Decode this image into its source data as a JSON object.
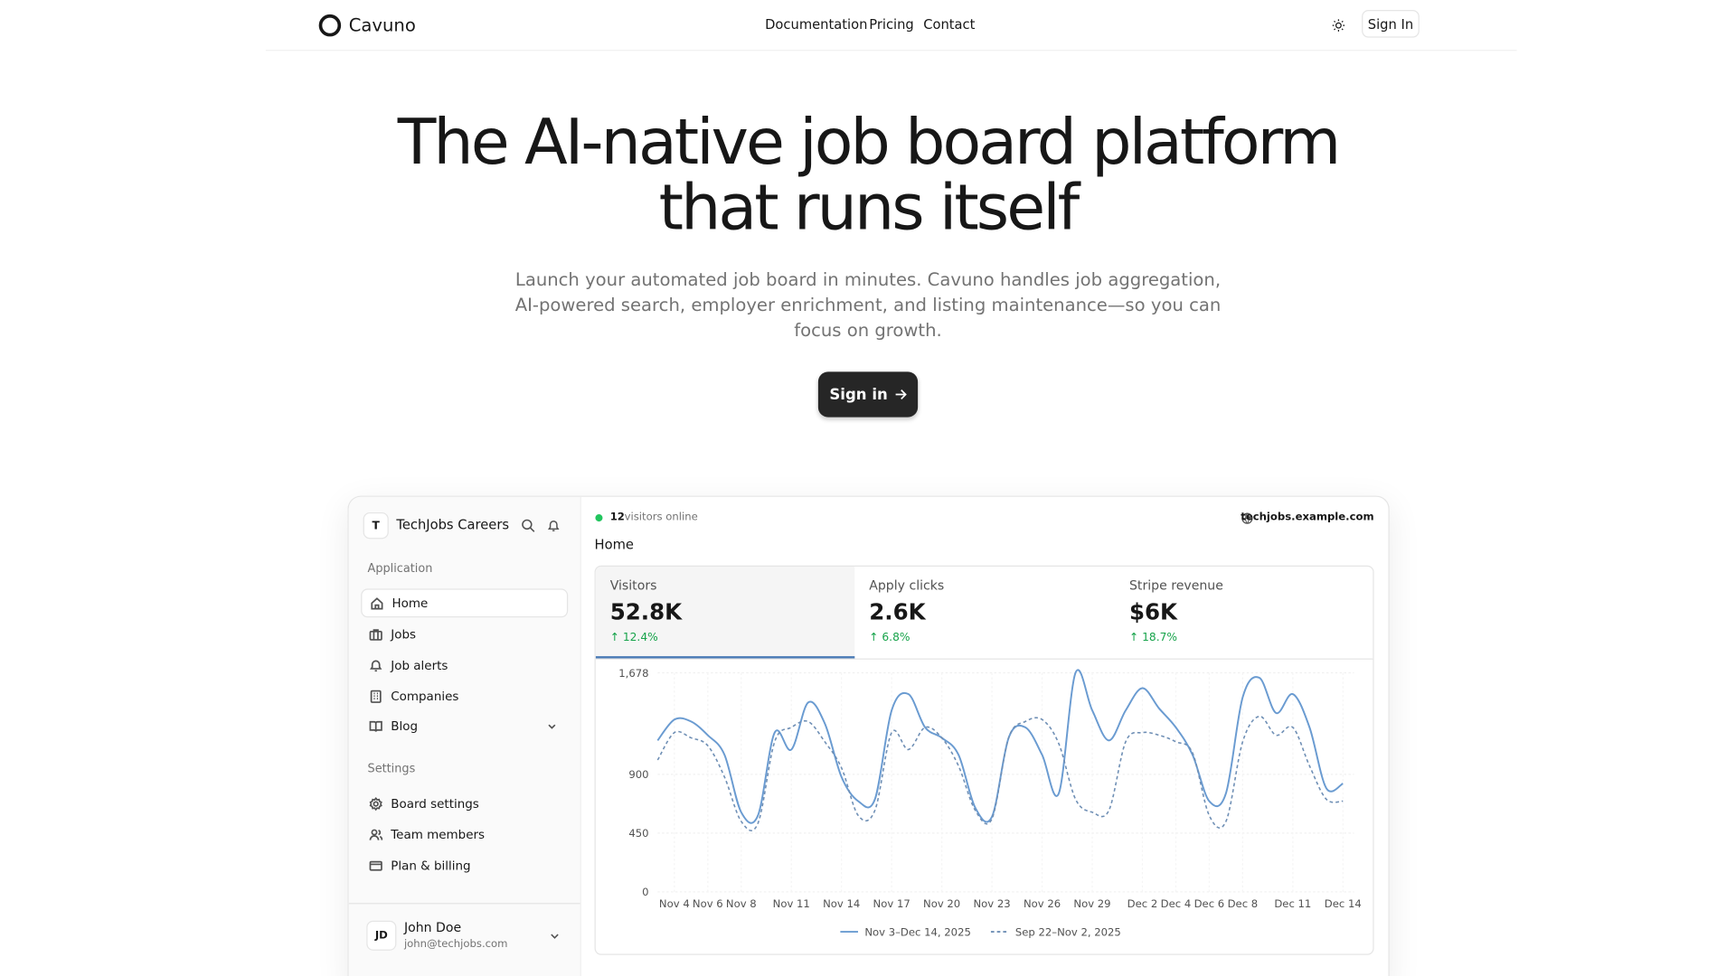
{
  "nav": {
    "brand": "Cavuno",
    "links": [
      "Documentation",
      "Pricing",
      "Contact"
    ],
    "sign_in": "Sign In"
  },
  "hero": {
    "title": "The AI-native job board platform that runs itself",
    "subtitle": "Launch your automated job board in minutes. Cavuno handles job aggregation, AI-powered search, employer enrichment, and listing maintenance—so you can focus on growth.",
    "cta": "Sign in"
  },
  "sidebar": {
    "workspace_initial": "T",
    "workspace": "TechJobs Careers",
    "sections": [
      {
        "title": "Application",
        "items": [
          "Home",
          "Jobs",
          "Job alerts",
          "Companies",
          "Blog"
        ]
      },
      {
        "title": "Settings",
        "items": [
          "Board settings",
          "Team members",
          "Plan & billing"
        ]
      }
    ],
    "user": {
      "initials": "JD",
      "name": "John Doe",
      "email": "john@techjobs.com"
    }
  },
  "header": {
    "online_count": 12,
    "online_text": "visitors online",
    "domain": "techjobs.example.com",
    "page_title": "Home"
  },
  "stats": [
    {
      "label": "Visitors",
      "value": "52.8K",
      "change": "12.4%"
    },
    {
      "label": "Apply clicks",
      "value": "2.6K",
      "change": "6.8%"
    },
    {
      "label": "Stripe revenue",
      "value": "$6K",
      "change": "18.7%"
    }
  ],
  "chart_data": {
    "type": "line",
    "categories": [
      null,
      "Nov 4",
      null,
      "Nov 6",
      null,
      "Nov 8",
      null,
      null,
      "Nov 11",
      null,
      null,
      "Nov 14",
      null,
      null,
      "Nov 17",
      null,
      null,
      "Nov 20",
      null,
      null,
      "Nov 23",
      null,
      null,
      "Nov 26",
      null,
      null,
      "Nov 29",
      null,
      null,
      "Dec 2",
      null,
      "Dec 4",
      null,
      "Dec 6",
      null,
      "Dec 8",
      null,
      null,
      "Dec 11",
      null,
      null,
      "Dec 14"
    ],
    "series": [
      {
        "name": "Nov 3–Dec 14, 2025",
        "color": "#6a9bd1",
        "dashed": false,
        "values": [
          1160,
          1320,
          1305,
          1200,
          1050,
          610,
          585,
          1220,
          1090,
          1450,
          1290,
          880,
          695,
          710,
          1390,
          1515,
          1260,
          1180,
          1050,
          645,
          575,
          1180,
          1260,
          1050,
          755,
          1678,
          1390,
          1160,
          1390,
          1560,
          1405,
          1260,
          1050,
          695,
          755,
          1490,
          1640,
          1370,
          1515,
          1260,
          795,
          830
        ]
      },
      {
        "name": "Sep 22–Nov 2, 2025",
        "color": "#6f8fb5",
        "dashed": true,
        "values": [
          1010,
          1220,
          1180,
          1120,
          880,
          540,
          525,
          1150,
          1260,
          1305,
          1150,
          950,
          585,
          625,
          1220,
          1090,
          1260,
          1180,
          965,
          625,
          560,
          1180,
          1305,
          1320,
          1135,
          710,
          610,
          625,
          1150,
          1220,
          1200,
          1150,
          1065,
          585,
          540,
          1150,
          1345,
          1200,
          1260,
          965,
          710,
          695
        ]
      }
    ],
    "ylim": [
      0,
      1678
    ],
    "yticks": [
      0,
      450,
      900,
      {
        "value": 1678,
        "label": "1,678"
      }
    ],
    "grid": true
  }
}
